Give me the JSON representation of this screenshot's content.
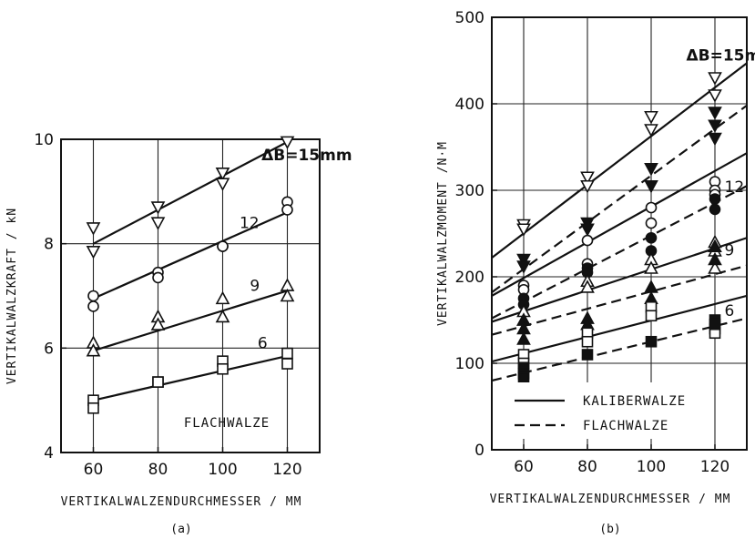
{
  "chart_data": [
    {
      "type": "scatter",
      "panel_label": "(a)",
      "xlabel": "VERTIKALWALZENDURCHMESSER  / MM",
      "ylabel": "VERTIKALWALZKRAFT  / kN",
      "xlim": [
        50,
        130
      ],
      "ylim": [
        4,
        10
      ],
      "xticks": [
        60,
        80,
        100,
        120
      ],
      "yticks": [
        4,
        6,
        8,
        10
      ],
      "grid": true,
      "annotation": "FLACHWALZE",
      "series": [
        {
          "label": "ΔB=15mm",
          "marker": "triangle-down-open",
          "line": "solid",
          "fit": [
            [
              60,
              8.0
            ],
            [
              120,
              9.95
            ]
          ],
          "points": [
            [
              60,
              8.3
            ],
            [
              60,
              7.85
            ],
            [
              80,
              8.7
            ],
            [
              80,
              8.4
            ],
            [
              100,
              9.35
            ],
            [
              100,
              9.15
            ],
            [
              120,
              9.95
            ]
          ]
        },
        {
          "label": "12",
          "marker": "circle-open",
          "line": "solid",
          "fit": [
            [
              60,
              6.95
            ],
            [
              120,
              8.6
            ]
          ],
          "points": [
            [
              60,
              7.0
            ],
            [
              60,
              6.8
            ],
            [
              80,
              7.45
            ],
            [
              80,
              7.35
            ],
            [
              100,
              7.95
            ],
            [
              100,
              7.95
            ],
            [
              120,
              8.8
            ],
            [
              120,
              8.65
            ]
          ]
        },
        {
          "label": "9",
          "marker": "triangle-up-open",
          "line": "solid",
          "fit": [
            [
              60,
              5.95
            ],
            [
              120,
              7.1
            ]
          ],
          "points": [
            [
              60,
              6.1
            ],
            [
              60,
              5.95
            ],
            [
              80,
              6.6
            ],
            [
              80,
              6.45
            ],
            [
              100,
              6.95
            ],
            [
              100,
              6.6
            ],
            [
              120,
              7.2
            ],
            [
              120,
              7.0
            ]
          ]
        },
        {
          "label": "6",
          "marker": "square-open",
          "line": "solid",
          "fit": [
            [
              60,
              5.0
            ],
            [
              120,
              5.85
            ]
          ],
          "points": [
            [
              60,
              5.0
            ],
            [
              60,
              4.85
            ],
            [
              80,
              5.35
            ],
            [
              80,
              5.35
            ],
            [
              100,
              5.75
            ],
            [
              100,
              5.6
            ],
            [
              120,
              5.9
            ],
            [
              120,
              5.7
            ]
          ]
        }
      ]
    },
    {
      "type": "scatter",
      "panel_label": "(b)",
      "xlabel": "VERTIKALWALZENDURCHMESSER  / MM",
      "ylabel": "VERTIKALWALZMOMENT  /N·M",
      "xlim": [
        50,
        130
      ],
      "ylim": [
        0,
        500
      ],
      "xticks": [
        60,
        80,
        100,
        120
      ],
      "yticks": [
        0,
        100,
        200,
        300,
        400,
        500
      ],
      "grid": true,
      "legend": [
        {
          "label": "KALIBERWALZE",
          "line": "solid"
        },
        {
          "label": "FLACHWALZE",
          "line": "dashed"
        }
      ],
      "group_labels": [
        {
          "text": "ΔB=15mm",
          "x": 111,
          "y": 450
        },
        {
          "text": "12",
          "x": 123,
          "y": 298
        },
        {
          "text": "9",
          "x": 123,
          "y": 225
        },
        {
          "text": "6",
          "x": 123,
          "y": 155
        }
      ],
      "series": [
        {
          "group": "15",
          "roll": "KALIBERWALZE",
          "marker": "triangle-down-open",
          "line": "solid",
          "fit": [
            [
              50,
              222
            ],
            [
              130,
              447
            ]
          ],
          "points": [
            [
              60,
              260
            ],
            [
              60,
              255
            ],
            [
              80,
              315
            ],
            [
              80,
              305
            ],
            [
              100,
              385
            ],
            [
              100,
              370
            ],
            [
              120,
              430
            ],
            [
              120,
              410
            ]
          ]
        },
        {
          "group": "15",
          "roll": "FLACHWALZE",
          "marker": "triangle-down-filled",
          "line": "dashed",
          "fit": [
            [
              50,
              182
            ],
            [
              130,
              398
            ]
          ],
          "points": [
            [
              60,
              220
            ],
            [
              60,
              212
            ],
            [
              80,
              262
            ],
            [
              80,
              255
            ],
            [
              100,
              325
            ],
            [
              100,
              305
            ],
            [
              120,
              390
            ],
            [
              120,
              375
            ],
            [
              120,
              360
            ]
          ]
        },
        {
          "group": "12",
          "roll": "KALIBERWALZE",
          "marker": "circle-open",
          "line": "solid",
          "fit": [
            [
              50,
              178
            ],
            [
              130,
              343
            ]
          ],
          "points": [
            [
              60,
              190
            ],
            [
              60,
              185
            ],
            [
              80,
              242
            ],
            [
              80,
              215
            ],
            [
              100,
              280
            ],
            [
              100,
              262
            ],
            [
              120,
              310
            ],
            [
              120,
              300
            ],
            [
              120,
              295
            ]
          ]
        },
        {
          "group": "12",
          "roll": "FLACHWALZE",
          "marker": "circle-filled",
          "line": "dashed",
          "fit": [
            [
              50,
              152
            ],
            [
              130,
              305
            ]
          ],
          "points": [
            [
              60,
              175
            ],
            [
              60,
              168
            ],
            [
              80,
              210
            ],
            [
              80,
              205
            ],
            [
              100,
              245
            ],
            [
              100,
              230
            ],
            [
              120,
              290
            ],
            [
              120,
              278
            ]
          ]
        },
        {
          "group": "9",
          "roll": "KALIBERWALZE",
          "marker": "triangle-up-open",
          "line": "solid",
          "fit": [
            [
              50,
              148
            ],
            [
              130,
              245
            ]
          ],
          "points": [
            [
              60,
              160
            ],
            [
              60,
              150
            ],
            [
              80,
              195
            ],
            [
              80,
              188
            ],
            [
              100,
              220
            ],
            [
              100,
              210
            ],
            [
              120,
              240
            ],
            [
              120,
              230
            ],
            [
              120,
              210
            ]
          ]
        },
        {
          "group": "9",
          "roll": "FLACHWALZE",
          "marker": "triangle-up-filled",
          "line": "dashed",
          "fit": [
            [
              50,
              133
            ],
            [
              130,
              213
            ]
          ],
          "points": [
            [
              60,
              150
            ],
            [
              60,
              140
            ],
            [
              60,
              128
            ],
            [
              80,
              152
            ],
            [
              80,
              145
            ],
            [
              100,
              188
            ],
            [
              100,
              175
            ],
            [
              120,
              235
            ],
            [
              120,
              220
            ]
          ]
        },
        {
          "group": "6",
          "roll": "KALIBERWALZE",
          "marker": "square-open",
          "line": "solid",
          "fit": [
            [
              50,
              102
            ],
            [
              130,
              178
            ]
          ],
          "points": [
            [
              60,
              110
            ],
            [
              60,
              100
            ],
            [
              80,
              135
            ],
            [
              80,
              125
            ],
            [
              100,
              165
            ],
            [
              100,
              155
            ],
            [
              120,
              140
            ],
            [
              120,
              135
            ]
          ]
        },
        {
          "group": "6",
          "roll": "FLACHWALZE",
          "marker": "square-filled",
          "line": "dashed",
          "fit": [
            [
              50,
              80
            ],
            [
              130,
              152
            ]
          ],
          "points": [
            [
              60,
              95
            ],
            [
              60,
              88
            ],
            [
              60,
              83
            ],
            [
              80,
              110
            ],
            [
              100,
              125
            ],
            [
              120,
              150
            ],
            [
              120,
              145
            ]
          ]
        }
      ]
    }
  ]
}
